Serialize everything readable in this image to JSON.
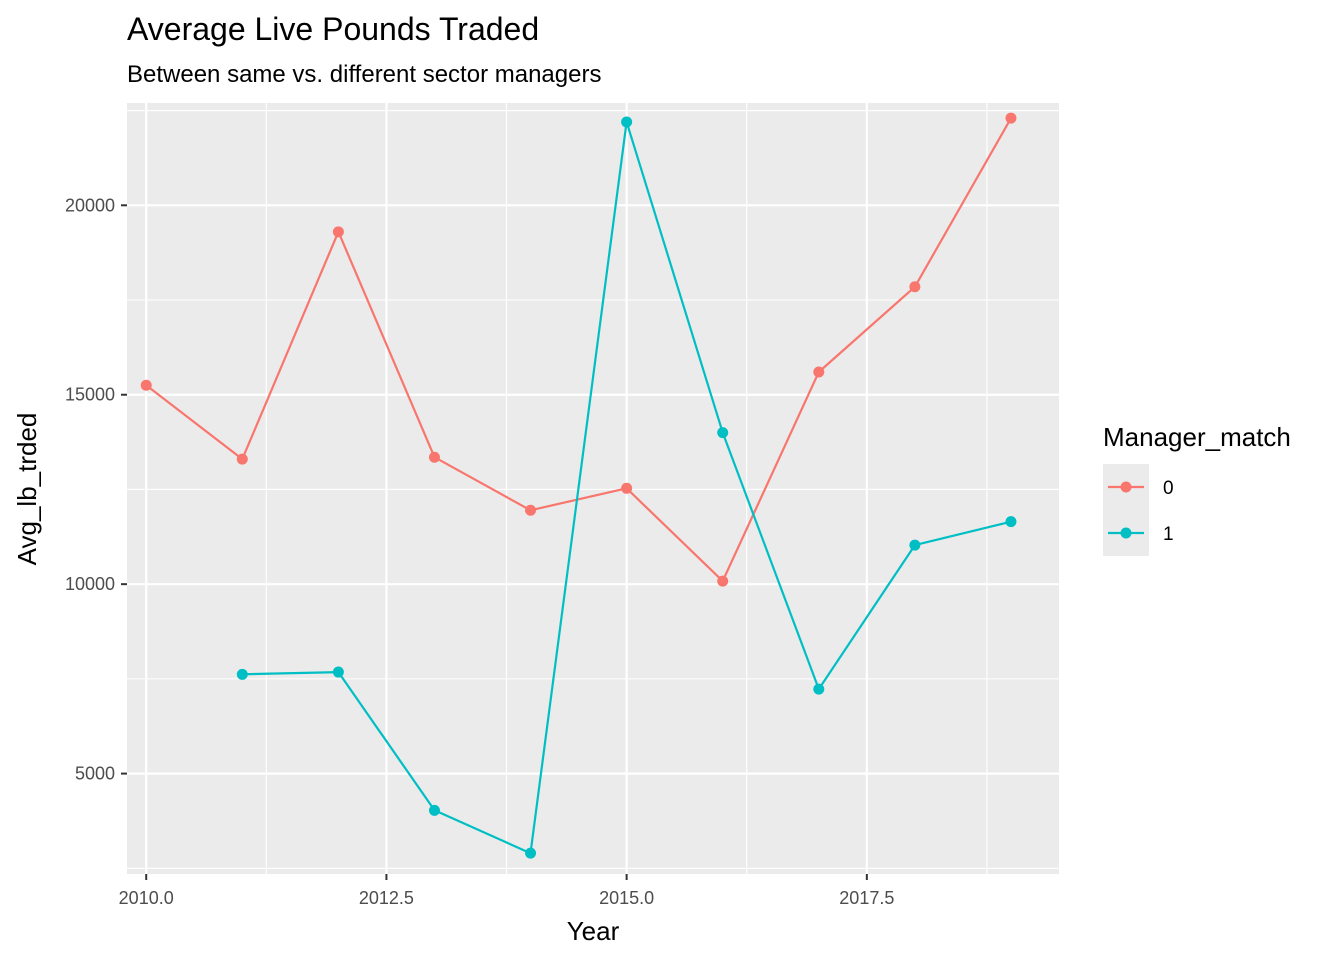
{
  "chart_data": {
    "type": "line",
    "title": "Average Live Pounds Traded",
    "subtitle": "Between same vs. different sector managers",
    "xlabel": "Year",
    "ylabel": "Avg_lb_trded",
    "xlim": [
      2009.8,
      2019.5
    ],
    "ylim": [
      2350,
      22700
    ],
    "x_ticks": [
      2010.0,
      2012.5,
      2015.0,
      2017.5
    ],
    "x_tick_labels": [
      "2010.0",
      "2012.5",
      "2015.0",
      "2017.5"
    ],
    "y_ticks": [
      5000,
      10000,
      15000,
      20000
    ],
    "y_tick_labels": [
      "5000",
      "10000",
      "15000",
      "20000"
    ],
    "grid": true,
    "panel_background": "#ebebeb",
    "legend": {
      "title": "Manager_match",
      "position": "right"
    },
    "series": [
      {
        "name": "0",
        "color": "#F8766D",
        "x": [
          2010,
          2011,
          2012,
          2013,
          2014,
          2015,
          2016,
          2017,
          2018,
          2019
        ],
        "values": [
          15250,
          13300,
          19300,
          13350,
          11950,
          12530,
          10080,
          15600,
          17850,
          22300
        ]
      },
      {
        "name": "1",
        "color": "#00BFC4",
        "x": [
          2011,
          2012,
          2013,
          2014,
          2015,
          2016,
          2017,
          2018,
          2019
        ],
        "values": [
          7620,
          7680,
          4030,
          2900,
          22200,
          14000,
          7230,
          11030,
          11650
        ]
      }
    ]
  }
}
